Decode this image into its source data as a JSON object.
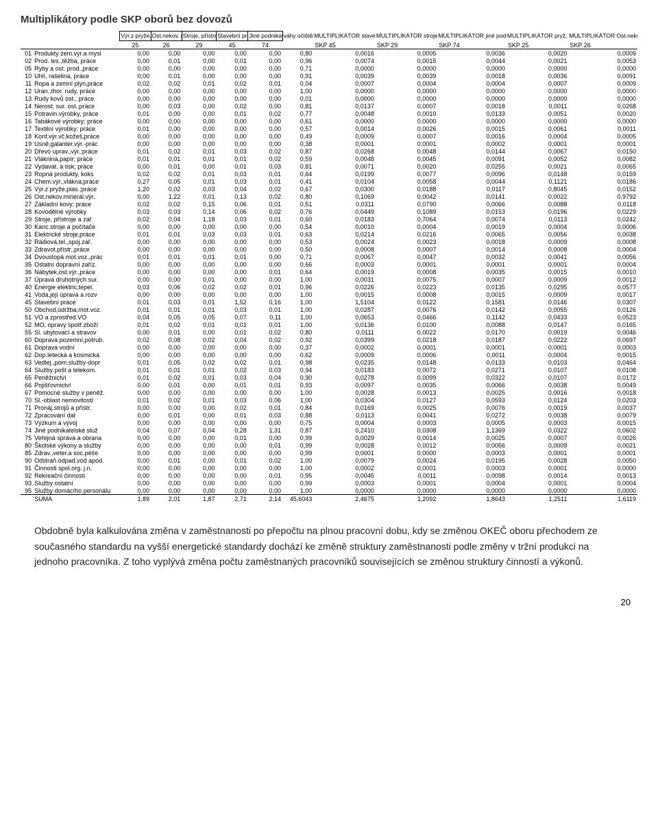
{
  "title": "Multiplikátory podle SKP oborů bez dovozů",
  "headers": {
    "boxed": [
      "Výr.z pryže,plas.;práce",
      "Ost.nekov. minerál.výr.",
      "Stroje, přístroje a zař",
      "Stavební práce",
      "Jiné podnikatelské služ"
    ],
    "unboxed": [
      "váhy očištění od dovozu",
      "MULTIPLIKÁTOR stavební práce",
      "MULTIPLIKÁTOR stroje, přístroje",
      "MULTIPLIKÁTOR jiné podnikatelské činnosti (projekce)",
      "MULTIPLIKÁTOR pryž, plast",
      "MULTIPLIKÁTOR Ost.nekov.minerál.výr (izolace)"
    ],
    "skp": [
      "25",
      "26",
      "29",
      "45",
      "74",
      "",
      "SKP 45",
      "SKP 29",
      "SKP 74",
      "SKP 25",
      "SKP 26"
    ]
  },
  "rows": [
    [
      "01",
      "Produkty zem.výr.a mysl",
      "0,00",
      "0,00",
      "0,00",
      "0,00",
      "0,00",
      "0,80",
      "0,0016",
      "0,0005",
      "0,0036",
      "0,0020",
      "0,0009"
    ],
    [
      "02",
      "Prod. les.,těžba, práce",
      "0,00",
      "0,01",
      "0,00",
      "0,01",
      "0,00",
      "0,96",
      "0,0074",
      "0,0015",
      "0,0044",
      "0,0021",
      "0,0053"
    ],
    [
      "05",
      "Ryby a ost. prod.,práce",
      "0,00",
      "0,00",
      "0,00",
      "0,00",
      "0,00",
      "0,71",
      "0,0000",
      "0,0000",
      "0,0000",
      "0,0000",
      "0,0000"
    ],
    [
      "10",
      "Uhlí, rašelina, práce",
      "0,00",
      "0,01",
      "0,00",
      "0,00",
      "0,00",
      "0,91",
      "0,0039",
      "0,0039",
      "0,0018",
      "0,0036",
      "0,0091"
    ],
    [
      "11",
      "Ropa a zemní plyn,práce",
      "0,02",
      "0,02",
      "0,01",
      "0,02",
      "0,01",
      "0,04",
      "0,0007",
      "0,0004",
      "0,0004",
      "0,0007",
      "0,0009"
    ],
    [
      "12",
      "Uran.,thor. rudy, práce",
      "0,00",
      "0,00",
      "0,00",
      "0,00",
      "0,00",
      "1,00",
      "0,0000",
      "0,0000",
      "0,0000",
      "0,0000",
      "0,0000"
    ],
    [
      "13",
      "Rudy kovů ost., práce",
      "0,00",
      "0,00",
      "0,00",
      "0,00",
      "0,00",
      "0,01",
      "0,0000",
      "0,0000",
      "0,0000",
      "0,0000",
      "0,0000"
    ],
    [
      "14",
      "Nerost. sur. ost.,práce",
      "0,00",
      "0,03",
      "0,00",
      "0,02",
      "0,00",
      "0,81",
      "0,0137",
      "0,0007",
      "0,0018",
      "0,0011",
      "0,0268"
    ],
    [
      "15",
      "Potravin.výrobky, práce",
      "0,01",
      "0,00",
      "0,00",
      "0,01",
      "0,02",
      "0,77",
      "0,0048",
      "0,0010",
      "0,0133",
      "0,0051",
      "0,0020"
    ],
    [
      "16",
      "Tabákové výrobky; práce",
      "0,00",
      "0,00",
      "0,00",
      "0,00",
      "0,00",
      "0,61",
      "0,0000",
      "0,0000",
      "0,0000",
      "0,0000",
      "0,0000"
    ],
    [
      "17",
      "Textilní výrobky; práce",
      "0,01",
      "0,00",
      "0,00",
      "0,00",
      "0,00",
      "0,57",
      "0,0014",
      "0,0026",
      "0,0015",
      "0,0061",
      "0,0011"
    ],
    [
      "18",
      "Konf.výr.vč.kožeš,práce",
      "0,00",
      "0,00",
      "0,00",
      "0,00",
      "0,00",
      "0,49",
      "0,0009",
      "0,0007",
      "0,0016",
      "0,0004",
      "0,0005"
    ],
    [
      "19",
      "Usně,galanter.výr.-prác",
      "0,00",
      "0,00",
      "0,00",
      "0,00",
      "0,00",
      "0,38",
      "0,0001",
      "0,0001",
      "0,0002",
      "0,0001",
      "0,0001"
    ],
    [
      "20",
      "Dřevo uprav.,výr.;práce",
      "0,01",
      "0,02",
      "0,01",
      "0,03",
      "0,02",
      "0,87",
      "0,0268",
      "0,0048",
      "0,0144",
      "0,0067",
      "0,0150"
    ],
    [
      "21",
      "Vláknina,papír; práce",
      "0,01",
      "0,01",
      "0,01",
      "0,01",
      "0,02",
      "0,59",
      "0,0048",
      "0,0045",
      "0,0091",
      "0,0052",
      "0,0082"
    ],
    [
      "22",
      "Vydavat. a tisk; práce",
      "0,00",
      "0,01",
      "0,00",
      "0,01",
      "0,03",
      "0,81",
      "0,0071",
      "0,0020",
      "0,0255",
      "0,0021",
      "0,0065"
    ],
    [
      "23",
      "Ropná produkty, koks",
      "0,02",
      "0,02",
      "0,01",
      "0,03",
      "0,01",
      "0,64",
      "0,0199",
      "0,0077",
      "0,0096",
      "0,0148",
      "0,0159"
    ],
    [
      "24",
      "Chem.výr.,vlákna;práce",
      "0,27",
      "0,05",
      "0,01",
      "0,03",
      "0,01",
      "0,41",
      "0,0104",
      "0,0058",
      "0,0044",
      "0,1121",
      "0,0186"
    ],
    [
      "25",
      "Výr.z pryže,plas.;práce",
      "1,20",
      "0,02",
      "0,03",
      "0,04",
      "0,02",
      "0,67",
      "0,0300",
      "0,0188",
      "0,0117",
      "0,8045",
      "0,0152"
    ],
    [
      "26",
      "Ost.nekov.minerál.výr.",
      "0,00",
      "1,22",
      "0,01",
      "0,13",
      "0,02",
      "0,80",
      "0,1069",
      "0,0042",
      "0,0141",
      "0,0022",
      "0,9792"
    ],
    [
      "27",
      "Základní kovy; práce",
      "0,02",
      "0,02",
      "0,15",
      "0,06",
      "0,01",
      "0,51",
      "0,0311",
      "0,0790",
      "0,0066",
      "0,0088",
      "0,0118"
    ],
    [
      "28",
      "Kovodělné výrobky",
      "0,03",
      "0,03",
      "0,14",
      "0,06",
      "0,02",
      "0,76",
      "0,0449",
      "0,1089",
      "0,0153",
      "0,0196",
      "0,0229"
    ],
    [
      "29",
      "Stroje, přístroje a zař",
      "0,02",
      "0,04",
      "1,18",
      "0,03",
      "0,01",
      "0,60",
      "0,0183",
      "0,7064",
      "0,0074",
      "0,0113",
      "0,0242"
    ],
    [
      "30",
      "Kanc.stroje a počítače",
      "0,00",
      "0,00",
      "0,00",
      "0,00",
      "0,00",
      "0,54",
      "0,0010",
      "0,0004",
      "0,0019",
      "0,0004",
      "0,0006"
    ],
    [
      "31",
      "Elektrické stroje,práce",
      "0,01",
      "0,01",
      "0,03",
      "0,03",
      "0,01",
      "0,63",
      "0,0214",
      "0,0216",
      "0,0065",
      "0,0056",
      "0,0038"
    ],
    [
      "32",
      "Rádiová,tel.,spoj.zař.",
      "0,00",
      "0,00",
      "0,00",
      "0,00",
      "0,00",
      "0,53",
      "0,0024",
      "0,0023",
      "0,0018",
      "0,0009",
      "0,0008"
    ],
    [
      "33",
      "Zdravot.přístr.,práce",
      "0,00",
      "0,00",
      "0,00",
      "0,00",
      "0,00",
      "0,50",
      "0,0008",
      "0,0007",
      "0,0014",
      "0,0008",
      "0,0004"
    ],
    [
      "34",
      "Dvoustopá mot.voz.,prác",
      "0,01",
      "0,01",
      "0,01",
      "0,01",
      "0,00",
      "0,71",
      "0,0067",
      "0,0047",
      "0,0032",
      "0,0041",
      "0,0056"
    ],
    [
      "35",
      "Ostatní dopravní zaříz.",
      "0,00",
      "0,00",
      "0,00",
      "0,00",
      "0,00",
      "0,66",
      "0,0003",
      "0,0001",
      "0,0001",
      "0,0001",
      "0,0004"
    ],
    [
      "36",
      "Nábytek,ost.výr.,práce",
      "0,00",
      "0,00",
      "0,00",
      "0,00",
      "0,01",
      "0,64",
      "0,0019",
      "0,0008",
      "0,0035",
      "0,0015",
      "0,0010"
    ],
    [
      "37",
      "Úprava druhotných sur.",
      "0,00",
      "0,00",
      "0,01",
      "0,00",
      "0,00",
      "1,00",
      "0,0031",
      "0,0075",
      "0,0007",
      "0,0009",
      "0,0012"
    ],
    [
      "40",
      "Energie elektric,tepel.",
      "0,03",
      "0,06",
      "0,02",
      "0,02",
      "0,01",
      "0,96",
      "0,0226",
      "0,0223",
      "0,0135",
      "0,0295",
      "0,0577"
    ],
    [
      "41",
      "Voda,její úprava a rozv",
      "0,00",
      "0,00",
      "0,00",
      "0,00",
      "0,00",
      "1,00",
      "0,0015",
      "0,0008",
      "0,0015",
      "0,0009",
      "0,0017"
    ],
    [
      "45",
      "Stavební práce",
      "0,01",
      "0,03",
      "0,01",
      "1,52",
      "0,16",
      "1,00",
      "1,5104",
      "0,0122",
      "0,1581",
      "0,0146",
      "0,0307"
    ],
    [
      "50",
      "Obchod,údržba,mot.voz.",
      "0,01",
      "0,01",
      "0,01",
      "0,03",
      "0,01",
      "1,00",
      "0,0287",
      "0,0076",
      "0,0142",
      "0,0055",
      "0,0126"
    ],
    [
      "51",
      "VO a zprostřed.VO",
      "0,04",
      "0,05",
      "0,05",
      "0,07",
      "0,11",
      "1,00",
      "0,0653",
      "0,0466",
      "0,1142",
      "0,0433",
      "0,0523"
    ],
    [
      "52",
      "MO, opravy spotř.zboží",
      "0,01",
      "0,02",
      "0,01",
      "0,01",
      "0,01",
      "1,00",
      "0,0136",
      "0,0100",
      "0,0088",
      "0,0147",
      "0,0165"
    ],
    [
      "55",
      "Sl. ubytovací a stravov",
      "0,00",
      "0,01",
      "0,00",
      "0,01",
      "0,02",
      "0,80",
      "0,0111",
      "0,0022",
      "0,0170",
      "0,0019",
      "0,0046"
    ],
    [
      "60",
      "Doprava pozemní,potrub.",
      "0,02",
      "0,08",
      "0,02",
      "0,04",
      "0,02",
      "0,92",
      "0,0399",
      "0,0218",
      "0,0187",
      "0,0222",
      "0,0697"
    ],
    [
      "61",
      "Doprava vodní",
      "0,00",
      "0,00",
      "0,00",
      "0,00",
      "0,00",
      "0,37",
      "0,0002",
      "0,0001",
      "0,0001",
      "0,0001",
      "0,0003"
    ],
    [
      "62",
      "Dop.letecká a kosmická",
      "0,00",
      "0,00",
      "0,00",
      "0,00",
      "0,00",
      "0,62",
      "0,0009",
      "0,0006",
      "0,0011",
      "0,0004",
      "0,0015"
    ],
    [
      "63",
      "Vedlej.,pom.služby-dopr",
      "0,01",
      "0,05",
      "0,02",
      "0,02",
      "0,01",
      "0,98",
      "0,0235",
      "0,0148",
      "0,0133",
      "0,0103",
      "0,0464"
    ],
    [
      "64",
      "Služby pošt a telekom.",
      "0,01",
      "0,01",
      "0,01",
      "0,02",
      "0,03",
      "0,94",
      "0,0183",
      "0,0072",
      "0,0271",
      "0,0107",
      "0,0108"
    ],
    [
      "65",
      "Peněžnictví",
      "0,01",
      "0,02",
      "0,01",
      "0,03",
      "0,04",
      "0,90",
      "0,0278",
      "0,0099",
      "0,0322",
      "0,0107",
      "0,0172"
    ],
    [
      "66",
      "Pojišťovnictví",
      "0,00",
      "0,01",
      "0,00",
      "0,01",
      "0,01",
      "0,93",
      "0,0097",
      "0,0035",
      "0,0066",
      "0,0038",
      "0,0049"
    ],
    [
      "67",
      "Pomocné služby v peněž.",
      "0,00",
      "0,00",
      "0,00",
      "0,00",
      "0,00",
      "1,00",
      "0,0028",
      "0,0013",
      "0,0025",
      "0,0016",
      "0,0018"
    ],
    [
      "70",
      "Sl.-oblast nemovitostí",
      "0,01",
      "0,02",
      "0,01",
      "0,03",
      "0,06",
      "1,00",
      "0,0304",
      "0,0127",
      "0,0593",
      "0,0124",
      "0,0203"
    ],
    [
      "71",
      "Pronáj.strojů a přístr.",
      "0,00",
      "0,00",
      "0,00",
      "0,02",
      "0,01",
      "0,84",
      "0,0169",
      "0,0025",
      "0,0076",
      "0,0019",
      "0,0037"
    ],
    [
      "72",
      "Zpracování dat",
      "0,00",
      "0,01",
      "0,00",
      "0,01",
      "0,03",
      "0,88",
      "0,0113",
      "0,0041",
      "0,0272",
      "0,0038",
      "0,0079"
    ],
    [
      "73",
      "Výzkum a vývoj",
      "0,00",
      "0,00",
      "0,00",
      "0,00",
      "0,00",
      "0,75",
      "0,0004",
      "0,0003",
      "0,0005",
      "0,0003",
      "0,0015"
    ],
    [
      "74",
      "Jiné podnikatelské služ",
      "0,04",
      "0,07",
      "0,04",
      "0,28",
      "1,31",
      "0,87",
      "0,2410",
      "0,0308",
      "1,1369",
      "0,0322",
      "0,0602"
    ],
    [
      "75",
      "Veřejná správa a obrana",
      "0,00",
      "0,00",
      "0,00",
      "0,01",
      "0,00",
      "0,99",
      "0,0029",
      "0,0014",
      "0,0025",
      "0,0007",
      "0,0026"
    ],
    [
      "80",
      "Školské výkony a služby",
      "0,00",
      "0,00",
      "0,00",
      "0,00",
      "0,01",
      "0,99",
      "0,0028",
      "0,0012",
      "0,0056",
      "0,0009",
      "0,0021"
    ],
    [
      "85",
      "Zdrav.,veter.a soc.péče",
      "0,00",
      "0,00",
      "0,00",
      "0,00",
      "0,00",
      "0,99",
      "0,0001",
      "0,0000",
      "0,0003",
      "0,0001",
      "0,0001"
    ],
    [
      "90",
      "Odstraň.odpad.vod apod.",
      "0,00",
      "0,01",
      "0,00",
      "0,01",
      "0,02",
      "1,00",
      "0,0079",
      "0,0024",
      "0,0195",
      "0,0028",
      "0,0050"
    ],
    [
      "91",
      "Činnosti spol.org. j.n.",
      "0,00",
      "0,00",
      "0,00",
      "0,00",
      "0,00",
      "1,00",
      "0,0002",
      "0,0001",
      "0,0003",
      "0,0001",
      "0,0000"
    ],
    [
      "92",
      "Rekreační činnosti",
      "0,00",
      "0,00",
      "0,00",
      "0,00",
      "0,01",
      "0,95",
      "0,0045",
      "0,0011",
      "0,0098",
      "0,0014",
      "0,0013"
    ],
    [
      "93",
      "Služby ostatní",
      "0,00",
      "0,00",
      "0,00",
      "0,00",
      "0,00",
      "0,99",
      "0,0003",
      "0,0001",
      "0,0004",
      "0,0001",
      "0,0004"
    ],
    [
      "95",
      "Služby domácího personálu",
      "0,00",
      "0,00",
      "0,00",
      "0,00",
      "0,00",
      "1,00",
      "0,0000",
      "0,0000",
      "0,0000",
      "0,0000",
      "0,0000"
    ]
  ],
  "sum": [
    "",
    "SUMA",
    "1,89",
    "2,01",
    "1,87",
    "2,71",
    "2,14",
    "45,6043",
    "2,4675",
    "1,2092",
    "1,8643",
    "1,2511",
    "1,6119"
  ],
  "body_text": "Obdobně byla kalkulována změna v zaměstnanosti po přepočtu na plnou pracovní dobu, kdy se změnou OKEČ oboru přechodem ze současného standardu na vyšší energetické standardy dochází ke změně struktury zaměstnanosti podle změny v tržní produkci na jednoho pracovníka. Z toho vyplývá změna počtu zaměstnaných pracovníků souvisejících se změnou struktury činností a výkonů.",
  "page_number": "20"
}
